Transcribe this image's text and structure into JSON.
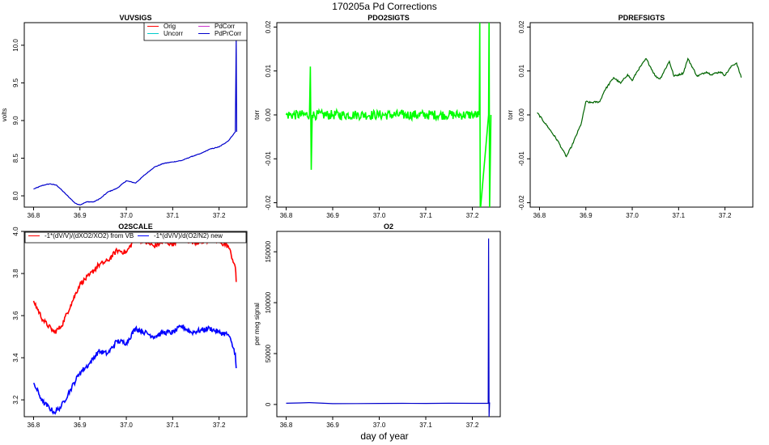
{
  "figure": {
    "title": "170205a   Pd Corrections",
    "xlabel": "day of year"
  },
  "chart_data": [
    {
      "id": "vuvsigs",
      "type": "line",
      "title": "VUVSIGS",
      "xlabel": "",
      "ylabel": "volts",
      "xlim": [
        36.78,
        37.26
      ],
      "ylim": [
        7.85,
        10.3
      ],
      "xticks": [
        "36.8",
        "36.9",
        "37.0",
        "37.1",
        "37.2"
      ],
      "yticks": [
        "8.0",
        "8.5",
        "9.0",
        "9.5",
        "10.0"
      ],
      "legend": {
        "placement": "top-right",
        "columns": 2,
        "entries": [
          {
            "name": "Orig",
            "color": "#ff0000"
          },
          {
            "name": "PdCorr",
            "color": "#cc33cc"
          },
          {
            "name": "Uncorr",
            "color": "#00cccc"
          },
          {
            "name": "PdPrCorr",
            "color": "#0000cc"
          }
        ]
      },
      "series": [
        {
          "name": "PdPrCorr",
          "color": "#0000cc",
          "x": [
            36.8,
            36.82,
            36.835,
            36.85,
            36.87,
            36.89,
            36.9,
            36.915,
            36.93,
            36.945,
            36.96,
            36.98,
            37.0,
            37.02,
            37.04,
            37.06,
            37.08,
            37.1,
            37.12,
            37.14,
            37.16,
            37.18,
            37.2,
            37.22,
            37.235,
            37.237,
            37.238
          ],
          "y": [
            8.09,
            8.14,
            8.16,
            8.14,
            8.02,
            7.9,
            7.88,
            7.92,
            7.92,
            7.97,
            8.05,
            8.1,
            8.2,
            8.17,
            8.28,
            8.38,
            8.43,
            8.45,
            8.47,
            8.52,
            8.56,
            8.62,
            8.65,
            8.73,
            8.85,
            10.1,
            8.85
          ]
        }
      ]
    },
    {
      "id": "pdo2sigts",
      "type": "line",
      "title": "PDO2SIGTS",
      "xlabel": "",
      "ylabel": "torr",
      "xlim": [
        36.78,
        37.26
      ],
      "ylim": [
        -0.021,
        0.021
      ],
      "xticks": [
        "36.8",
        "36.9",
        "37.0",
        "37.1",
        "37.2"
      ],
      "yticks": [
        "-0.02",
        "-0.01",
        "0.00",
        "0.01",
        "0.02"
      ],
      "series": [
        {
          "name": "",
          "color": "#00ff00",
          "x": [
            36.8,
            36.85,
            36.852,
            36.854,
            36.856,
            36.9,
            36.95,
            37.0,
            37.05,
            37.1,
            37.15,
            37.2,
            37.215,
            37.216,
            37.217,
            37.235,
            37.236,
            37.237,
            37.24
          ],
          "y": [
            0.0,
            0.0,
            0.011,
            -0.0125,
            0.0,
            0.0,
            0.0,
            0.0,
            0.0,
            0.0,
            0.0,
            0.0,
            0.0,
            0.022,
            -0.022,
            0.0,
            0.022,
            -0.022,
            0.0
          ]
        }
      ]
    },
    {
      "id": "pdrefsigts",
      "type": "line",
      "title": "PDREFSIGTS",
      "xlabel": "",
      "ylabel": "torr",
      "xlim": [
        36.78,
        37.26
      ],
      "ylim": [
        -0.021,
        0.021
      ],
      "xticks": [
        "36.8",
        "36.9",
        "37.0",
        "37.1",
        "37.2"
      ],
      "yticks": [
        "-0.02",
        "-0.01",
        "0.00",
        "0.01",
        "0.02"
      ],
      "series": [
        {
          "name": "",
          "color": "#006400",
          "x": [
            36.795,
            36.82,
            36.84,
            36.85,
            36.858,
            36.87,
            36.89,
            36.9,
            36.91,
            36.93,
            36.94,
            36.96,
            36.975,
            36.99,
            37.0,
            37.01,
            37.03,
            37.05,
            37.06,
            37.08,
            37.09,
            37.11,
            37.12,
            37.14,
            37.16,
            37.17,
            37.19,
            37.2,
            37.215,
            37.225,
            37.235
          ],
          "y": [
            0.0005,
            -0.003,
            -0.006,
            -0.008,
            -0.0095,
            -0.007,
            -0.002,
            0.003,
            0.0028,
            0.003,
            0.0055,
            0.0085,
            0.0072,
            0.0092,
            0.0078,
            0.0098,
            0.0128,
            0.0088,
            0.0082,
            0.0122,
            0.0088,
            0.0095,
            0.0128,
            0.0088,
            0.0098,
            0.0092,
            0.0098,
            0.009,
            0.0112,
            0.0118,
            0.0085
          ]
        }
      ]
    },
    {
      "id": "o2scale",
      "type": "line",
      "title": "O2SCALE",
      "xlabel": "",
      "ylabel": "",
      "xlim": [
        36.78,
        37.26
      ],
      "ylim": [
        3.12,
        4.0
      ],
      "xticks": [
        "36.8",
        "36.9",
        "37.0",
        "37.1",
        "37.2"
      ],
      "yticks": [
        "3.2",
        "3.4",
        "3.6",
        "3.8",
        "4.0"
      ],
      "legend": {
        "placement": "top",
        "columns": 2,
        "entries": [
          {
            "name": "-1*(dV/V)/(dXO2/XO2) from VB",
            "color": "#ff0000"
          },
          {
            "name": "-1*(dV/V)/d(O2/N2) new",
            "color": "#0000ff"
          }
        ]
      },
      "series": [
        {
          "name": "-1*(dV/V)/(dXO2/XO2) from VB",
          "color": "#ff0000",
          "x": [
            36.8,
            36.82,
            36.845,
            36.86,
            36.88,
            36.9,
            36.92,
            36.94,
            36.96,
            36.98,
            37.0,
            37.02,
            37.04,
            37.06,
            37.08,
            37.1,
            37.12,
            37.14,
            37.16,
            37.18,
            37.2,
            37.22,
            37.235,
            37.237
          ],
          "y": [
            3.67,
            3.58,
            3.52,
            3.55,
            3.65,
            3.75,
            3.79,
            3.84,
            3.86,
            3.91,
            3.9,
            3.97,
            3.95,
            3.93,
            3.95,
            3.94,
            3.97,
            3.95,
            3.95,
            3.96,
            3.95,
            3.93,
            3.83,
            3.76
          ]
        },
        {
          "name": "-1*(dV/V)/d(O2/N2) new",
          "color": "#0000ff",
          "x": [
            36.8,
            36.82,
            36.845,
            36.86,
            36.88,
            36.9,
            36.92,
            36.94,
            36.96,
            36.98,
            37.0,
            37.02,
            37.04,
            37.06,
            37.08,
            37.1,
            37.12,
            37.14,
            37.16,
            37.18,
            37.2,
            37.22,
            37.235,
            37.237
          ],
          "y": [
            3.28,
            3.19,
            3.14,
            3.17,
            3.25,
            3.33,
            3.37,
            3.43,
            3.42,
            3.48,
            3.47,
            3.54,
            3.52,
            3.5,
            3.52,
            3.52,
            3.55,
            3.52,
            3.53,
            3.54,
            3.52,
            3.51,
            3.42,
            3.35
          ]
        }
      ]
    },
    {
      "id": "o2",
      "type": "line",
      "title": "O2",
      "xlabel": "",
      "ylabel": "per meg signal",
      "xlim": [
        36.78,
        37.26
      ],
      "ylim": [
        -12000,
        170000
      ],
      "xticks": [
        "36.8",
        "36.9",
        "37.0",
        "37.1",
        "37.2"
      ],
      "yticks": [
        "0",
        "50000",
        "100000",
        "150000"
      ],
      "series": [
        {
          "name": "",
          "color": "#0000cc",
          "x": [
            36.8,
            36.83,
            36.85,
            36.9,
            36.95,
            37.0,
            37.05,
            37.1,
            37.15,
            37.2,
            37.234,
            37.235,
            37.236,
            37.237,
            37.238
          ],
          "y": [
            1200,
            1500,
            1800,
            800,
            900,
            1000,
            1100,
            1000,
            1200,
            1100,
            1200,
            163000,
            -12000,
            1500,
            1200
          ]
        }
      ]
    }
  ]
}
